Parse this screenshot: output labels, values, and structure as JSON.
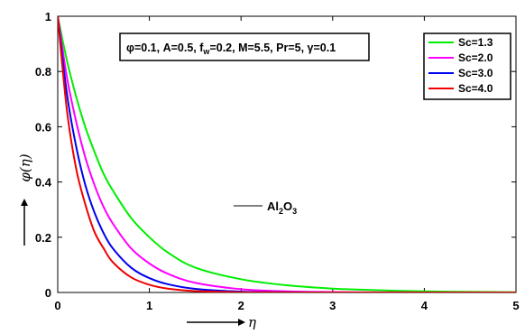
{
  "chart_data": {
    "type": "line",
    "xlabel": "η",
    "ylabel": "φ(η)",
    "xlim": [
      0,
      5
    ],
    "ylim": [
      0,
      1
    ],
    "xticks": [
      "0",
      "1",
      "2",
      "3",
      "4",
      "5"
    ],
    "yticks": [
      "0",
      "0.2",
      "0.4",
      "0.6",
      "0.8",
      "1"
    ],
    "params_text": "φ=0.1, A=0.5, f_w=0.2, M=5.5, Pr=5, γ=0.1",
    "params": {
      "phi": "φ=0.1",
      "A": "A=0.5",
      "fw_base": "f",
      "fw_sub": "w",
      "fw_value": "=0.2",
      "M": "M=5.5",
      "Pr": "Pr=5",
      "gamma": "γ=0.1"
    },
    "annotation": {
      "base1": "Al",
      "sub1": "2",
      "base2": "O",
      "sub2": "3"
    },
    "legend_position": "top-right",
    "grid": false,
    "x": [
      0,
      0.1,
      0.2,
      0.3,
      0.4,
      0.5,
      0.6,
      0.8,
      1.0,
      1.2,
      1.5,
      2.0,
      2.5,
      3.0,
      3.5,
      4.0,
      4.5,
      5.0
    ],
    "series": [
      {
        "name": "Sc=1.3",
        "color": "#00ee00",
        "values": [
          1.0,
          0.84,
          0.71,
          0.6,
          0.51,
          0.43,
          0.37,
          0.27,
          0.2,
          0.145,
          0.09,
          0.048,
          0.026,
          0.014,
          0.008,
          0.004,
          0.002,
          0.001
        ]
      },
      {
        "name": "Sc=2.0",
        "color": "#ff00ff",
        "values": [
          1.0,
          0.78,
          0.62,
          0.49,
          0.39,
          0.31,
          0.25,
          0.16,
          0.105,
          0.068,
          0.035,
          0.012,
          0.004,
          0.0015,
          0.0005,
          0.0002,
          0.0001,
          0.0
        ]
      },
      {
        "name": "Sc=3.0",
        "color": "#0000ee",
        "values": [
          1.0,
          0.72,
          0.53,
          0.39,
          0.29,
          0.215,
          0.16,
          0.09,
          0.052,
          0.03,
          0.013,
          0.003,
          0.001,
          0.0002,
          0.0,
          0.0,
          0.0,
          0.0
        ]
      },
      {
        "name": "Sc=4.0",
        "color": "#ee0000",
        "values": [
          1.0,
          0.66,
          0.45,
          0.32,
          0.22,
          0.16,
          0.11,
          0.055,
          0.028,
          0.014,
          0.005,
          0.001,
          0.0002,
          0.0,
          0.0,
          0.0,
          0.0,
          0.0
        ]
      }
    ]
  }
}
